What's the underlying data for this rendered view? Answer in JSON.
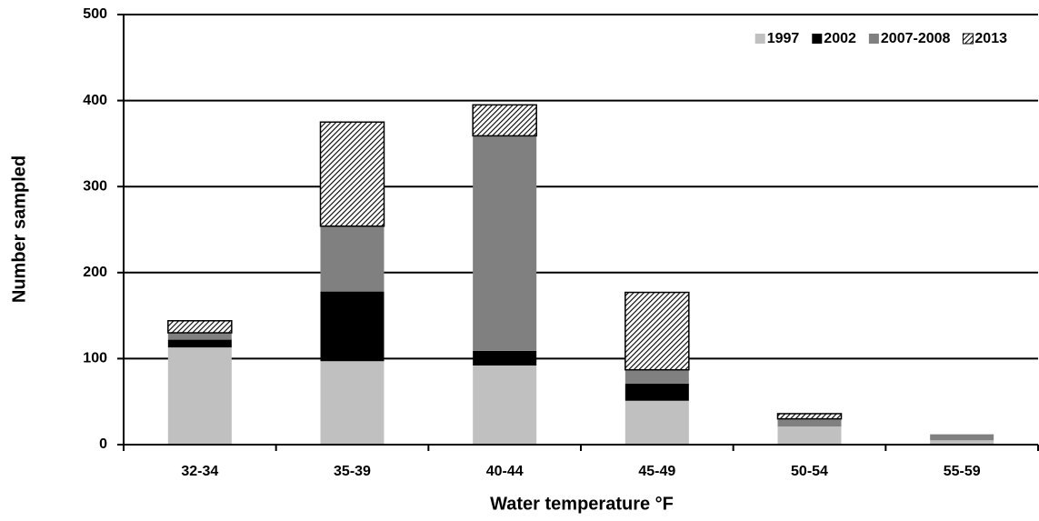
{
  "chart_data": {
    "type": "stacked_bar",
    "x_label": "Water temperature °F",
    "y_label": "Number sampled",
    "categories": [
      "32-34",
      "35-39",
      "40-44",
      "45-49",
      "50-54",
      "55-59"
    ],
    "series": [
      {
        "name": "1997",
        "color": "#c0c0c0",
        "values": [
          113,
          97,
          92,
          51,
          21,
          5
        ]
      },
      {
        "name": "2002",
        "color": "#000000",
        "values": [
          9,
          81,
          17,
          20,
          0,
          0
        ]
      },
      {
        "name": "2007-2008",
        "color": "#808080",
        "values": [
          8,
          76,
          250,
          16,
          9,
          7
        ]
      },
      {
        "name": "2013",
        "color": "#000000",
        "hatch": true,
        "values": [
          14,
          121,
          36,
          90,
          6,
          0
        ]
      }
    ],
    "ylim": [
      0,
      500
    ],
    "yticks": [
      0,
      100,
      200,
      300,
      400,
      500
    ],
    "grid": true,
    "legend": "top-right"
  }
}
